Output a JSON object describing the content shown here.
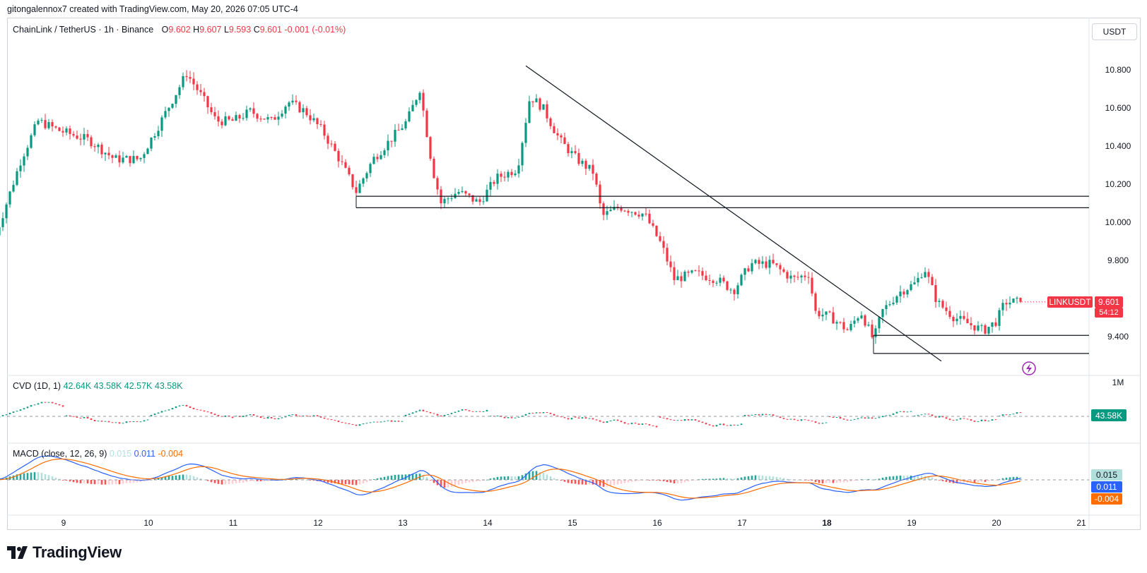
{
  "header": {
    "author_line": "gitongalennox7 created with TradingView.com, May 20, 2026 07:05 UTC-4"
  },
  "legend": {
    "symbol": "ChainLink / TetherUS · 1h · Binance",
    "o_label": "O",
    "o_value": "9.602",
    "h_label": "H",
    "h_value": "9.607",
    "l_label": "L",
    "l_value": "9.593",
    "c_label": "C",
    "c_value": "9.601",
    "change": "-0.001 (-0.01%)"
  },
  "currency_button": "USDT",
  "last_price": {
    "symbol_tag": "LINKUSDT",
    "price": "9.601",
    "countdown": "54:12"
  },
  "cvd": {
    "label": "CVD (1D, 1)",
    "v1": "42.64K",
    "v2": "43.58K",
    "v3": "42.57K",
    "v4": "43.58K",
    "axis_label": "1M",
    "current_tag": "43.58K"
  },
  "macd": {
    "label": "MACD (close, 12, 26, 9)",
    "hist": "0.015",
    "macd": "0.011",
    "signal": "-0.004",
    "tag_hist": "0.015",
    "tag_macd": "0.011",
    "tag_signal": "-0.004"
  },
  "footer": {
    "brand": "TradingView"
  },
  "colors": {
    "up": "#089981",
    "down": "#f23645",
    "macd_line": "#2962ff",
    "signal_line": "#ff6d00",
    "hist_up": "#26a69a",
    "hist_down": "#ff5252"
  },
  "chart_data": {
    "type": "candlestick",
    "price_axis_ticks": [
      "10.800",
      "10.600",
      "10.400",
      "10.200",
      "10.000",
      "9.800",
      "9.400"
    ],
    "x_tick_labels": [
      "9",
      "10",
      "11",
      "12",
      "13",
      "14",
      "15",
      "16",
      "17",
      "18",
      "19",
      "20",
      "21"
    ],
    "ylim": [
      9.3,
      10.9
    ],
    "price_path": [
      [
        8.2,
        9.95
      ],
      [
        8.5,
        10.35
      ],
      [
        8.7,
        10.55
      ],
      [
        8.95,
        10.5
      ],
      [
        9.3,
        10.45
      ],
      [
        9.6,
        10.35
      ],
      [
        9.9,
        10.35
      ],
      [
        10.15,
        10.55
      ],
      [
        10.45,
        10.8
      ],
      [
        10.6,
        10.7
      ],
      [
        10.8,
        10.55
      ],
      [
        11.0,
        10.55
      ],
      [
        11.2,
        10.6
      ],
      [
        11.45,
        10.55
      ],
      [
        11.65,
        10.65
      ],
      [
        11.85,
        10.6
      ],
      [
        12.05,
        10.5
      ],
      [
        12.25,
        10.35
      ],
      [
        12.45,
        10.18
      ],
      [
        12.65,
        10.35
      ],
      [
        12.85,
        10.45
      ],
      [
        13.05,
        10.55
      ],
      [
        13.2,
        10.72
      ],
      [
        13.35,
        10.3
      ],
      [
        13.45,
        10.12
      ],
      [
        13.65,
        10.18
      ],
      [
        13.9,
        10.12
      ],
      [
        14.1,
        10.25
      ],
      [
        14.35,
        10.3
      ],
      [
        14.5,
        10.68
      ],
      [
        14.65,
        10.62
      ],
      [
        14.85,
        10.45
      ],
      [
        15.05,
        10.35
      ],
      [
        15.25,
        10.28
      ],
      [
        15.35,
        10.05
      ],
      [
        15.55,
        10.1
      ],
      [
        15.85,
        10.06
      ],
      [
        16.05,
        9.9
      ],
      [
        16.2,
        9.72
      ],
      [
        16.45,
        9.75
      ],
      [
        16.7,
        9.72
      ],
      [
        16.9,
        9.66
      ],
      [
        17.1,
        9.8
      ],
      [
        17.35,
        9.8
      ],
      [
        17.6,
        9.72
      ],
      [
        17.8,
        9.75
      ],
      [
        17.85,
        9.55
      ],
      [
        18.05,
        9.52
      ],
      [
        18.25,
        9.45
      ],
      [
        18.4,
        9.55
      ],
      [
        18.55,
        9.4
      ],
      [
        18.65,
        9.55
      ],
      [
        18.85,
        9.65
      ],
      [
        19.05,
        9.7
      ],
      [
        19.15,
        9.78
      ],
      [
        19.3,
        9.6
      ],
      [
        19.5,
        9.52
      ],
      [
        19.7,
        9.48
      ],
      [
        19.85,
        9.45
      ],
      [
        20.0,
        9.5
      ],
      [
        20.1,
        9.6
      ],
      [
        20.3,
        9.601
      ]
    ],
    "annotations": {
      "trendline": {
        "from": [
          14.45,
          10.84
        ],
        "to": [
          19.35,
          9.29
        ]
      },
      "resistance_levels": [
        10.155,
        10.095
      ],
      "support_levels": [
        9.425,
        9.33
      ]
    },
    "last_close": 9.601
  }
}
